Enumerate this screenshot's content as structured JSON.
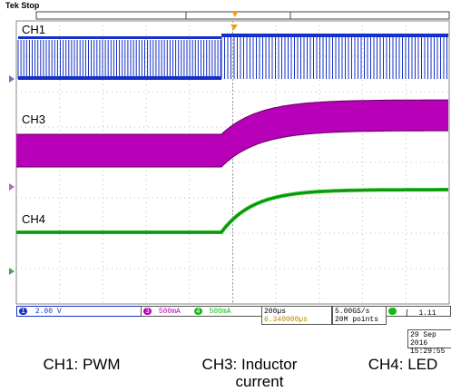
{
  "header": {
    "status": "Tek Stop"
  },
  "channels": [
    {
      "id": "ch1",
      "label": "CH1",
      "color": "#1430c8"
    },
    {
      "id": "ch3",
      "label": "CH3",
      "color": "#b800b8"
    },
    {
      "id": "ch4",
      "label": "CH4",
      "color": "#18b818"
    }
  ],
  "ground_marker_color": "#7a6cc0",
  "bottom_bar": {
    "ch1": {
      "num": "1",
      "value": "2.00 V"
    },
    "ch3": {
      "num": "3",
      "value": "500mA"
    },
    "ch4": {
      "num": "4",
      "value": "500mA"
    },
    "timebase": "200µs",
    "trigger_pos": "6.340000µs",
    "sample_rate": "5.00GS/s",
    "record_length": "20M points",
    "trigger_level": "1.11",
    "date": "29 Sep 2016",
    "time": "15:29:55"
  },
  "captions": {
    "ch1": "CH1: PWM",
    "ch3_line1": "CH3: Inductor",
    "ch3_line2": "current",
    "ch4": "CH4: LED"
  }
}
